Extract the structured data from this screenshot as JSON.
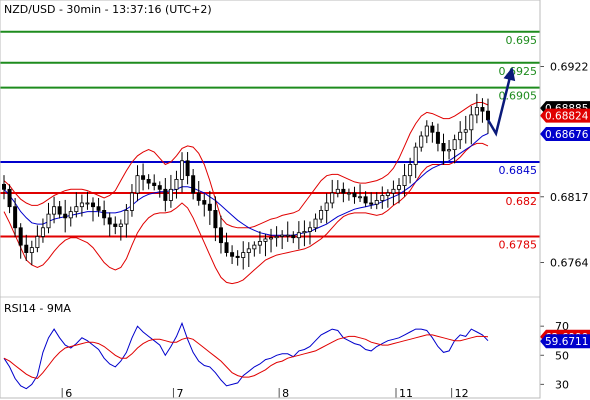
{
  "chart_data": [
    {
      "type": "candlestick",
      "title": "NZD/USD - 30min - 13:37:16 (UTC+2)",
      "ylim": [
        0.6737,
        0.6974
      ],
      "y_ticks": [
        "0.6922",
        "0.6817",
        "0.6764"
      ],
      "x_ticks": [
        "6",
        "7",
        "8",
        "11",
        "12"
      ],
      "levels": [
        {
          "value": 0.695,
          "label": "0.695",
          "color": "#1e8c1e"
        },
        {
          "value": 0.6925,
          "label": "0.6925",
          "color": "#1e8c1e"
        },
        {
          "value": 0.6905,
          "label": "0.6905",
          "color": "#1e8c1e"
        },
        {
          "value": 0.6845,
          "label": "0.6845",
          "color": "#0000cc"
        },
        {
          "value": 0.682,
          "label": "0.682",
          "color": "#e00000"
        },
        {
          "value": 0.6785,
          "label": "0.6785",
          "color": "#e00000"
        }
      ],
      "price_tags": [
        {
          "value": 0.68885,
          "label": "0.68885",
          "bg": "#000000"
        },
        {
          "value": 0.68824,
          "label": "0.68824",
          "bg": "#e00000"
        },
        {
          "value": 0.68676,
          "label": "0.68676",
          "bg": "#0000cc"
        }
      ],
      "close_series": [
        0.6823,
        0.6809,
        0.6792,
        0.6778,
        0.6772,
        0.6776,
        0.6785,
        0.6792,
        0.6803,
        0.6809,
        0.6803,
        0.68,
        0.6805,
        0.6809,
        0.6812,
        0.6812,
        0.6809,
        0.6806,
        0.68,
        0.6795,
        0.6793,
        0.6795,
        0.6806,
        0.682,
        0.6834,
        0.6831,
        0.6828,
        0.6826,
        0.6823,
        0.6814,
        0.6823,
        0.6831,
        0.6846,
        0.6834,
        0.682,
        0.6814,
        0.6811,
        0.6806,
        0.6792,
        0.678,
        0.6772,
        0.6769,
        0.6768,
        0.6772,
        0.6775,
        0.6778,
        0.6781,
        0.6783,
        0.6784,
        0.6785,
        0.6786,
        0.6786,
        0.6784,
        0.6788,
        0.6789,
        0.6792,
        0.6799,
        0.6806,
        0.6812,
        0.682,
        0.6823,
        0.682,
        0.682,
        0.6817,
        0.6817,
        0.6812,
        0.6811,
        0.6814,
        0.6818,
        0.682,
        0.6823,
        0.6826,
        0.6834,
        0.6843,
        0.6857,
        0.6866,
        0.6874,
        0.6869,
        0.686,
        0.6854,
        0.6855,
        0.6863,
        0.6869,
        0.6871,
        0.6883,
        0.6889,
        0.6886,
        0.6879
      ],
      "projection": [
        [
          0.6879,
          0.6868
        ],
        [
          0.6868,
          0.692
        ]
      ],
      "bollinger": {
        "upper": [
          0.683,
          0.6826,
          0.682,
          0.6815,
          0.6812,
          0.681,
          0.681,
          0.6812,
          0.6815,
          0.6818,
          0.682,
          0.6822,
          0.6823,
          0.6823,
          0.6823,
          0.6822,
          0.682,
          0.6818,
          0.6816,
          0.6818,
          0.6822,
          0.683,
          0.6838,
          0.6845,
          0.685,
          0.6853,
          0.6855,
          0.6853,
          0.6848,
          0.6843,
          0.6845,
          0.685,
          0.6856,
          0.6858,
          0.6857,
          0.6852,
          0.6843,
          0.683,
          0.6815,
          0.68,
          0.6795,
          0.6793,
          0.6792,
          0.6792,
          0.6792,
          0.6793,
          0.6795,
          0.6797,
          0.6799,
          0.68,
          0.6802,
          0.6803,
          0.6804,
          0.6806,
          0.6812,
          0.6818,
          0.6824,
          0.683,
          0.6834,
          0.6835,
          0.6835,
          0.6833,
          0.6831,
          0.6829,
          0.6828,
          0.6828,
          0.6829,
          0.683,
          0.6832,
          0.6835,
          0.684,
          0.6848,
          0.6858,
          0.6868,
          0.6876,
          0.6882,
          0.6885,
          0.6884,
          0.6882,
          0.688,
          0.688,
          0.6882,
          0.6885,
          0.6888,
          0.6891,
          0.6893,
          0.6893,
          0.6891
        ],
        "lower": [
          0.6805,
          0.6796,
          0.6786,
          0.6776,
          0.6766,
          0.6762,
          0.676,
          0.6762,
          0.6767,
          0.6773,
          0.6778,
          0.6782,
          0.6784,
          0.6784,
          0.6782,
          0.678,
          0.6776,
          0.677,
          0.6764,
          0.676,
          0.6758,
          0.676,
          0.6767,
          0.6778,
          0.6788,
          0.6795,
          0.68,
          0.6803,
          0.6804,
          0.6804,
          0.6805,
          0.6808,
          0.6812,
          0.6808,
          0.68,
          0.679,
          0.678,
          0.677,
          0.676,
          0.6752,
          0.6748,
          0.6747,
          0.6748,
          0.675,
          0.6754,
          0.6758,
          0.6762,
          0.6766,
          0.6768,
          0.677,
          0.6771,
          0.6772,
          0.6773,
          0.6774,
          0.6775,
          0.6777,
          0.678,
          0.6783,
          0.6787,
          0.6792,
          0.6797,
          0.6801,
          0.6803,
          0.6804,
          0.6804,
          0.6804,
          0.6803,
          0.6802,
          0.6803,
          0.6806,
          0.681,
          0.6813,
          0.6817,
          0.6822,
          0.6829,
          0.6836,
          0.6841,
          0.6843,
          0.6843,
          0.6843,
          0.6843,
          0.6845,
          0.6849,
          0.6854,
          0.6858,
          0.686,
          0.686,
          0.6858
        ]
      },
      "ma_series": [
        0.6823,
        0.6818,
        0.6812,
        0.6805,
        0.68,
        0.6796,
        0.6795,
        0.6795,
        0.6797,
        0.6799,
        0.68,
        0.6801,
        0.6802,
        0.6803,
        0.6804,
        0.6805,
        0.6805,
        0.6805,
        0.6804,
        0.6804,
        0.6804,
        0.6805,
        0.6807,
        0.681,
        0.6814,
        0.6817,
        0.6819,
        0.682,
        0.6821,
        0.6821,
        0.6822,
        0.6823,
        0.6825,
        0.6825,
        0.6824,
        0.6822,
        0.682,
        0.6817,
        0.6814,
        0.681,
        0.6806,
        0.6802,
        0.6798,
        0.6795,
        0.6792,
        0.679,
        0.6788,
        0.6787,
        0.6786,
        0.6786,
        0.6786,
        0.6786,
        0.6786,
        0.6787,
        0.6788,
        0.6789,
        0.6791,
        0.6793,
        0.6795,
        0.6798,
        0.6801,
        0.6803,
        0.6805,
        0.6807,
        0.6808,
        0.6809,
        0.681,
        0.6811,
        0.6813,
        0.6815,
        0.6817,
        0.6819,
        0.6822,
        0.6825,
        0.6829,
        0.6833,
        0.6837,
        0.684,
        0.6842,
        0.6844,
        0.6846,
        0.6849,
        0.6852,
        0.6855,
        0.6858,
        0.6862,
        0.6866,
        0.6868
      ]
    },
    {
      "type": "line",
      "title": "RSI14 - 9MA",
      "ylim": [
        22,
        88
      ],
      "y_ticks": [
        "70",
        "50",
        "30"
      ],
      "tags": [
        {
          "value": 62.6999,
          "label": "62.6999",
          "bg": "#e00000"
        },
        {
          "value": 59.6711,
          "label": "59.6711",
          "bg": "#0000cc"
        }
      ],
      "series": [
        {
          "color": "#0000cc",
          "values": [
            48,
            42,
            34,
            29,
            27,
            30,
            36,
            52,
            62,
            68,
            62,
            57,
            55,
            58,
            62,
            60,
            57,
            54,
            48,
            44,
            42,
            46,
            52,
            62,
            70,
            66,
            63,
            60,
            57,
            50,
            56,
            63,
            72,
            61,
            52,
            46,
            43,
            42,
            38,
            33,
            29,
            30,
            31,
            36,
            39,
            42,
            44,
            47,
            48,
            50,
            51,
            51,
            49,
            53,
            54,
            56,
            60,
            64,
            66,
            68,
            67,
            62,
            60,
            58,
            57,
            54,
            53,
            56,
            58,
            60,
            61,
            62,
            64,
            66,
            68,
            68,
            67,
            62,
            56,
            52,
            53,
            60,
            64,
            63,
            68,
            66,
            64,
            60
          ]
        },
        {
          "color": "#e00000",
          "values": [
            48,
            46,
            43,
            40,
            37,
            35,
            34,
            38,
            43,
            48,
            52,
            55,
            56,
            57,
            58,
            59,
            59,
            58,
            56,
            53,
            50,
            48,
            48,
            51,
            55,
            58,
            60,
            61,
            61,
            60,
            59,
            59,
            61,
            62,
            61,
            58,
            55,
            52,
            49,
            46,
            42,
            38,
            36,
            35,
            35,
            36,
            38,
            40,
            43,
            45,
            46,
            48,
            49,
            50,
            51,
            52,
            53,
            55,
            57,
            59,
            61,
            62,
            63,
            63,
            62,
            61,
            59,
            58,
            57,
            57,
            58,
            59,
            60,
            61,
            62,
            63,
            64,
            64,
            63,
            62,
            61,
            60,
            60,
            61,
            62,
            63,
            63,
            62.7
          ]
        }
      ]
    }
  ]
}
